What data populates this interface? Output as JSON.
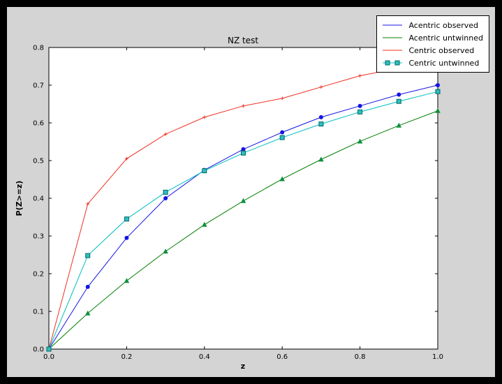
{
  "colors": {
    "window_bg": "#000000",
    "figure_bg": "#d4d4d4",
    "plot_bg": "#ffffff",
    "axis": "#000000",
    "tick_label": "#000000",
    "legend_bg": "#ffffff",
    "legend_border": "#000000"
  },
  "chart_data": {
    "type": "line",
    "title": "NZ test",
    "xlabel": "z",
    "ylabel": "P(Z>=z)",
    "xlim": [
      0.0,
      1.0
    ],
    "ylim": [
      0.0,
      0.8
    ],
    "grid": false,
    "legend_position": "upper right",
    "x": [
      0.0,
      0.1,
      0.2,
      0.3,
      0.4,
      0.5,
      0.6,
      0.7,
      0.8,
      0.9,
      1.0
    ],
    "xticks": [
      0.0,
      0.2,
      0.4,
      0.6,
      0.8,
      1.0
    ],
    "xtick_labels": [
      "0.0",
      "0.2",
      "0.4",
      "0.6",
      "0.8",
      "1.0"
    ],
    "yticks": [
      0.0,
      0.1,
      0.2,
      0.3,
      0.4,
      0.5,
      0.6,
      0.7,
      0.8
    ],
    "ytick_labels": [
      "0.0",
      "0.1",
      "0.2",
      "0.3",
      "0.4",
      "0.5",
      "0.6",
      "0.7",
      "0.8"
    ],
    "series": [
      {
        "name": "Acentric observed",
        "color": "#1414e6",
        "marker": "circle",
        "marker_fill": "#1414e6",
        "marker_edge": "#000080",
        "legend_marker": false,
        "values": [
          0.0,
          0.165,
          0.295,
          0.4,
          0.475,
          0.53,
          0.575,
          0.615,
          0.645,
          0.675,
          0.7
        ]
      },
      {
        "name": "Acentric untwinned",
        "color": "#007f00",
        "marker": "triangle",
        "marker_fill": "#0f8f3f",
        "marker_edge": "#005500",
        "legend_marker": false,
        "values": [
          0.0,
          0.095,
          0.181,
          0.259,
          0.33,
          0.393,
          0.451,
          0.503,
          0.551,
          0.593,
          0.632
        ]
      },
      {
        "name": "Centric observed",
        "color": "#ee3124",
        "marker": "plus",
        "marker_fill": "#ee3124",
        "marker_edge": "#ee3124",
        "legend_marker": false,
        "values": [
          0.0,
          0.385,
          0.505,
          0.57,
          0.615,
          0.645,
          0.665,
          0.695,
          0.725,
          0.745,
          0.76
        ]
      },
      {
        "name": "Centric untwinned",
        "color": "#00bfbf",
        "marker": "square",
        "marker_fill": "#2fbfbf",
        "marker_edge": "#006666",
        "legend_marker": true,
        "values": [
          0.0,
          0.248,
          0.345,
          0.416,
          0.473,
          0.52,
          0.561,
          0.597,
          0.629,
          0.657,
          0.683
        ]
      }
    ]
  }
}
